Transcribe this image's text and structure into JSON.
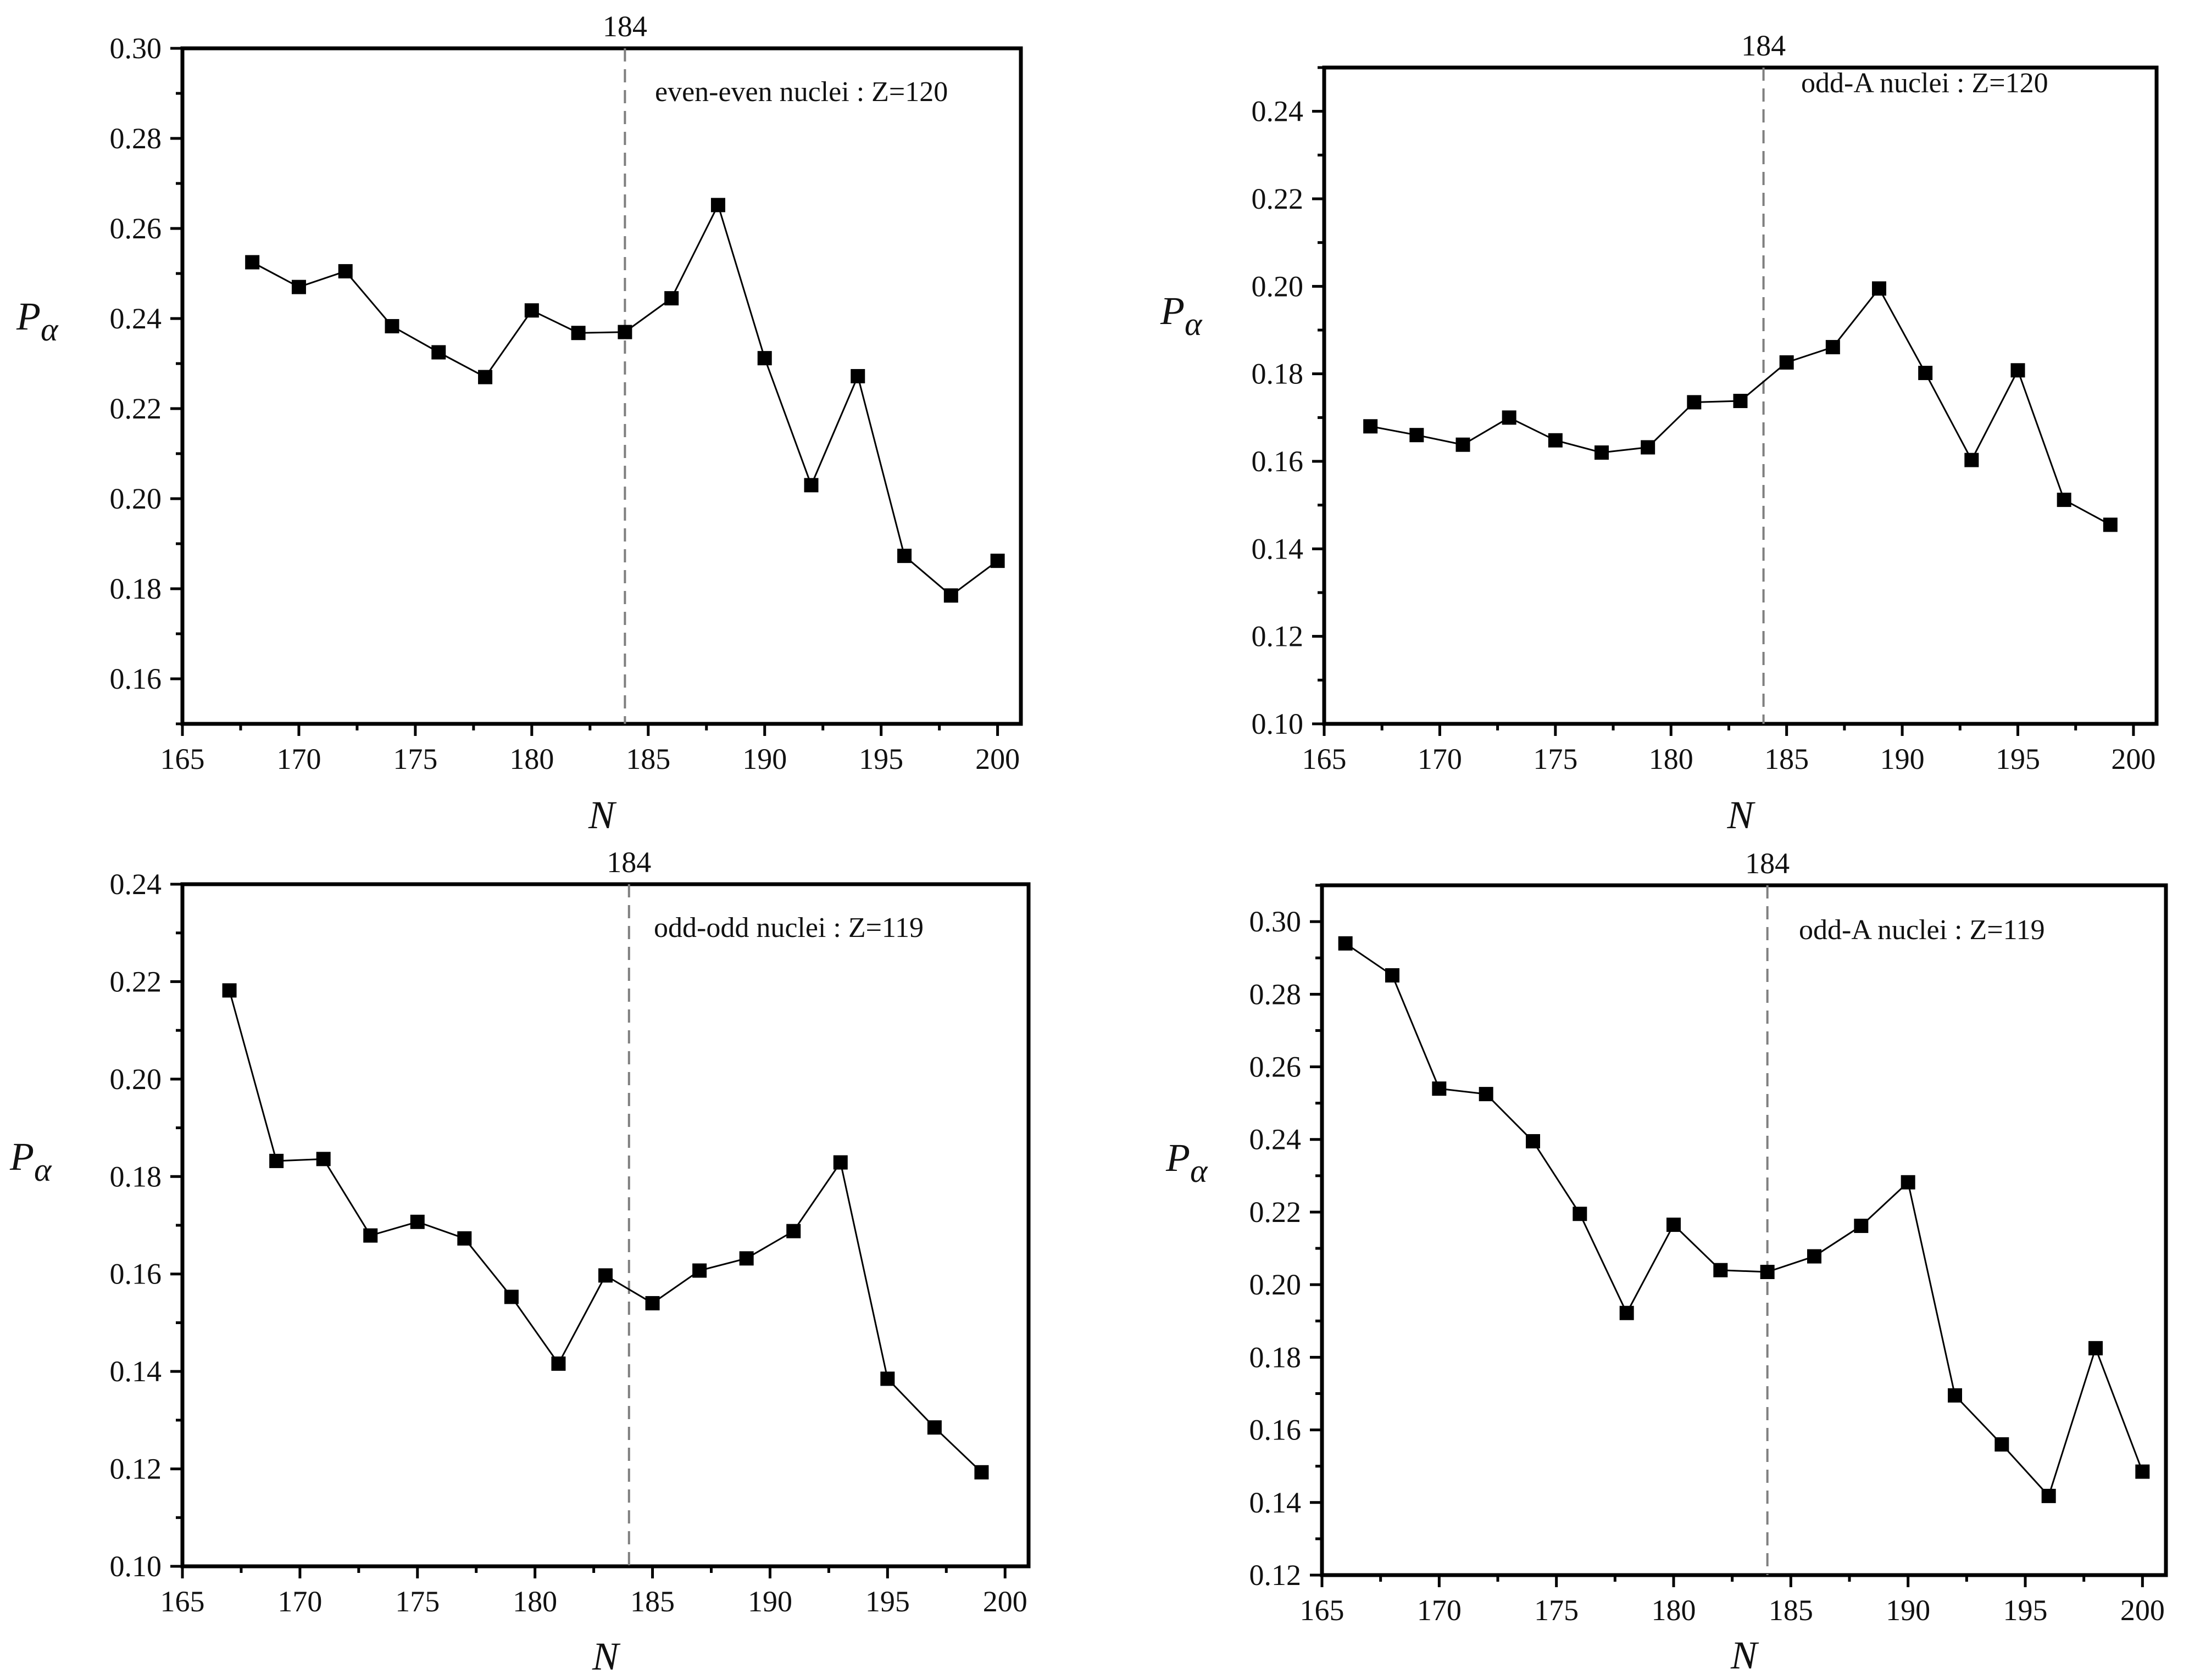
{
  "figure": {
    "reference_line": {
      "value": 184,
      "label": "184"
    },
    "colors": {
      "axis": "#000000",
      "series": "#000000",
      "reference": "#7f7f7f"
    }
  },
  "chart_data": [
    {
      "type": "line",
      "annotation": "even-even  nuclei : Z=120",
      "xlabel": "N",
      "ylabel_main": "P",
      "ylabel_sub": "α",
      "xlim": [
        165,
        201
      ],
      "ylim": [
        0.15,
        0.3
      ],
      "xticks": [
        165,
        170,
        175,
        180,
        185,
        190,
        195,
        200
      ],
      "yticks": [
        0.16,
        0.18,
        0.2,
        0.22,
        0.24,
        0.26,
        0.28,
        0.3
      ],
      "x": [
        168,
        170,
        172,
        174,
        176,
        178,
        180,
        182,
        184,
        186,
        188,
        190,
        192,
        194,
        196,
        198,
        200
      ],
      "y": [
        0.2525,
        0.247,
        0.2505,
        0.2383,
        0.2325,
        0.227,
        0.2418,
        0.2368,
        0.237,
        0.2445,
        0.2652,
        0.2312,
        0.203,
        0.2272,
        0.1873,
        0.1785,
        0.1862
      ]
    },
    {
      "type": "line",
      "annotation": "odd-A  nuclei : Z=120",
      "xlabel": "N",
      "ylabel_main": "P",
      "ylabel_sub": "α",
      "xlim": [
        165,
        201
      ],
      "ylim": [
        0.1,
        0.25
      ],
      "xticks": [
        165,
        170,
        175,
        180,
        185,
        190,
        195,
        200
      ],
      "yticks": [
        0.1,
        0.12,
        0.14,
        0.16,
        0.18,
        0.2,
        0.22,
        0.24
      ],
      "x": [
        167,
        169,
        171,
        173,
        175,
        177,
        179,
        181,
        183,
        185,
        187,
        189,
        191,
        193,
        195,
        197,
        199
      ],
      "y": [
        0.168,
        0.166,
        0.1638,
        0.17,
        0.1648,
        0.162,
        0.1632,
        0.1735,
        0.1738,
        0.1826,
        0.1861,
        0.1995,
        0.1802,
        0.1603,
        0.1808,
        0.1512,
        0.1455
      ]
    },
    {
      "type": "line",
      "annotation": "odd-odd  nuclei : Z=119",
      "xlabel": "N",
      "ylabel_main": "P",
      "ylabel_sub": "α",
      "xlim": [
        165,
        201
      ],
      "ylim": [
        0.1,
        0.24
      ],
      "xticks": [
        165,
        170,
        175,
        180,
        185,
        190,
        195,
        200
      ],
      "yticks": [
        0.1,
        0.12,
        0.14,
        0.16,
        0.18,
        0.2,
        0.22,
        0.24
      ],
      "x": [
        167,
        169,
        171,
        173,
        175,
        177,
        179,
        181,
        183,
        185,
        187,
        189,
        191,
        193,
        195,
        197,
        199
      ],
      "y": [
        0.2182,
        0.1832,
        0.1836,
        0.1679,
        0.1707,
        0.1673,
        0.1553,
        0.1416,
        0.1597,
        0.154,
        0.1607,
        0.1632,
        0.1688,
        0.1829,
        0.1385,
        0.1285,
        0.1193
      ]
    },
    {
      "type": "line",
      "annotation": "odd-A  nuclei : Z=119",
      "xlabel": "N",
      "ylabel_main": "P",
      "ylabel_sub": "α",
      "xlim": [
        165,
        201
      ],
      "ylim": [
        0.12,
        0.31
      ],
      "xticks": [
        165,
        170,
        175,
        180,
        185,
        190,
        195,
        200
      ],
      "yticks": [
        0.12,
        0.14,
        0.16,
        0.18,
        0.2,
        0.22,
        0.24,
        0.26,
        0.28,
        0.3
      ],
      "x": [
        166,
        168,
        170,
        172,
        174,
        176,
        178,
        180,
        182,
        184,
        186,
        188,
        190,
        192,
        194,
        196,
        198,
        200
      ],
      "y": [
        0.294,
        0.2852,
        0.254,
        0.2525,
        0.2395,
        0.2195,
        0.1922,
        0.2165,
        0.204,
        0.2035,
        0.2078,
        0.2162,
        0.2282,
        0.1695,
        0.156,
        0.1418,
        0.1825,
        0.1485
      ]
    }
  ]
}
